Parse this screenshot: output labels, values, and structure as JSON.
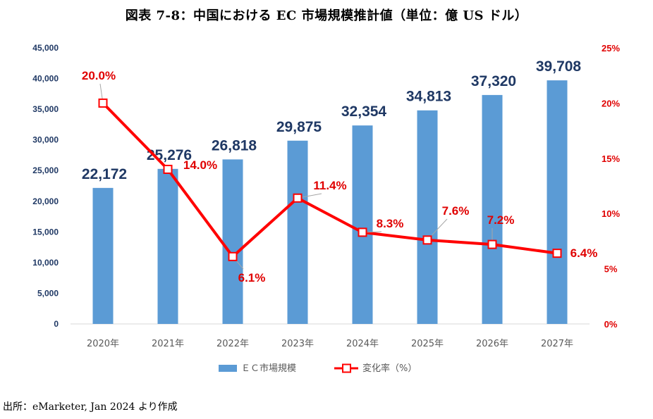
{
  "title": "図表 7-8：中国における EC 市場規模推計値（単位：億 US ドル）",
  "source": "出所：eMarketer, Jan 2024 より作成",
  "colors": {
    "bar": "#5b9bd5",
    "line": "#ff0000",
    "bar_label": "#1f3864",
    "pct_label": "#e00000",
    "axis_right": "#e00000",
    "axis_left": "#1f3864"
  },
  "chart_data": {
    "type": "bar",
    "categories": [
      "2020年",
      "2021年",
      "2022年",
      "2023年",
      "2024年",
      "2025年",
      "2026年",
      "2027年"
    ],
    "series": [
      {
        "name": "ＥＣ市場規模",
        "type": "bar",
        "axis": "left",
        "values": [
          22172,
          25276,
          26818,
          29875,
          32354,
          34813,
          37320,
          39708
        ],
        "labels": [
          "22,172",
          "25,276",
          "26,818",
          "29,875",
          "32,354",
          "34,813",
          "37,320",
          "39,708"
        ]
      },
      {
        "name": "変化率（%）",
        "type": "line",
        "axis": "right",
        "values": [
          20.0,
          14.0,
          6.1,
          11.4,
          8.3,
          7.6,
          7.2,
          6.4
        ],
        "labels": [
          "20.0%",
          "14.0%",
          "6.1%",
          "11.4%",
          "8.3%",
          "7.6%",
          "7.2%",
          "6.4%"
        ]
      }
    ],
    "y_left": {
      "ylim": [
        0,
        45000
      ],
      "ticks": [
        "0",
        "5,000",
        "10,000",
        "15,000",
        "20,000",
        "25,000",
        "30,000",
        "35,000",
        "40,000",
        "45,000"
      ]
    },
    "y_right": {
      "ylim": [
        0,
        25
      ],
      "ticks": [
        "0%",
        "5%",
        "10%",
        "15%",
        "20%",
        "25%"
      ]
    },
    "grid": false,
    "legend": "bottom"
  }
}
